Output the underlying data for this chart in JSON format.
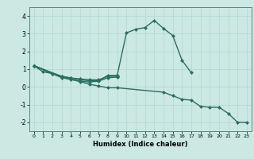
{
  "xlabel": "Humidex (Indice chaleur)",
  "background_color": "#cce8e3",
  "grid_color": "#b0d8d3",
  "line_color": "#2a6e63",
  "line_width": 1.0,
  "marker_size": 2.5,
  "xlim": [
    -0.5,
    23.5
  ],
  "ylim": [
    -2.5,
    4.5
  ],
  "xticks": [
    0,
    1,
    2,
    3,
    4,
    5,
    6,
    7,
    8,
    9,
    10,
    11,
    12,
    13,
    14,
    15,
    16,
    17,
    18,
    19,
    20,
    21,
    22,
    23
  ],
  "yticks": [
    -2,
    -1,
    0,
    1,
    2,
    3,
    4
  ],
  "series": [
    {
      "x": [
        0,
        1,
        2,
        3,
        4,
        5,
        6,
        7,
        8,
        9,
        10,
        11,
        12,
        13,
        14,
        15,
        16,
        17
      ],
      "y": [
        1.2,
        0.85,
        0.75,
        0.6,
        0.5,
        0.4,
        0.35,
        0.35,
        0.65,
        0.65,
        3.05,
        3.25,
        3.35,
        3.75,
        3.3,
        2.9,
        1.5,
        0.8
      ]
    },
    {
      "x": [
        0,
        3,
        4,
        5,
        6,
        7,
        8,
        9
      ],
      "y": [
        1.2,
        0.6,
        0.5,
        0.45,
        0.4,
        0.4,
        0.6,
        0.6
      ]
    },
    {
      "x": [
        0,
        3,
        4,
        5,
        6,
        7,
        8,
        9
      ],
      "y": [
        1.2,
        0.52,
        0.42,
        0.32,
        0.28,
        0.32,
        0.52,
        0.55
      ]
    },
    {
      "x": [
        0,
        2,
        3,
        5,
        6,
        7,
        8,
        9,
        14,
        15,
        16,
        17,
        18,
        19,
        20,
        21,
        22,
        23
      ],
      "y": [
        1.2,
        0.75,
        0.55,
        0.3,
        0.15,
        0.05,
        -0.05,
        -0.05,
        -0.3,
        -0.5,
        -0.7,
        -0.75,
        -1.1,
        -1.15,
        -1.15,
        -1.5,
        -2.0,
        -2.0
      ]
    }
  ]
}
